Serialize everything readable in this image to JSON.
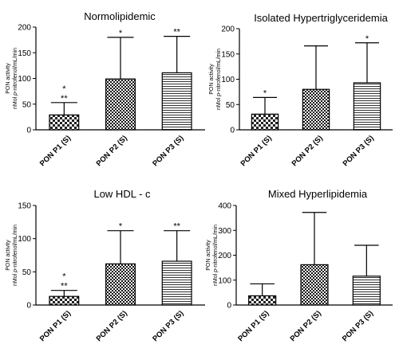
{
  "chart_data": [
    {
      "type": "bar",
      "title": "Normolipidemic",
      "ylabel": "PON activity",
      "ylabel2_pre": "nMol ",
      "ylabel2_italic": "p",
      "ylabel2_post": "-nitrofenol/mL/min",
      "ylim": [
        0,
        200
      ],
      "yticks": [
        "0",
        "50",
        "100",
        "150",
        "200"
      ],
      "yticks_values": [
        0,
        50,
        100,
        150,
        200
      ],
      "categories": [
        "PON P1 (S)",
        "PON P2 (S)",
        "PON P3 (S)"
      ],
      "values": [
        29,
        99,
        111
      ],
      "error_upper": [
        53,
        180,
        182
      ],
      "annotations": [
        [
          "*",
          "**"
        ],
        [
          "*"
        ],
        [
          "**"
        ]
      ],
      "patterns": [
        "checker",
        "checker-fine",
        "hlines"
      ]
    },
    {
      "type": "bar",
      "title": "Isolated Hypertriglyceridemia",
      "ylabel": "PON activity",
      "ylabel2_pre": "nMol ",
      "ylabel2_italic": "p",
      "ylabel2_post": "-nitrofenol/mL/min",
      "ylim": [
        0,
        200
      ],
      "yticks": [
        "0",
        "50",
        "100",
        "150",
        "200"
      ],
      "yticks_values": [
        0,
        50,
        100,
        150,
        200
      ],
      "categories": [
        "PON P1 (S)",
        "PON P2 (S)",
        "PON P3 (S)"
      ],
      "values": [
        31,
        80,
        93
      ],
      "error_upper": [
        64,
        166,
        172
      ],
      "annotations": [
        [
          "*"
        ],
        [],
        [
          "*"
        ]
      ],
      "patterns": [
        "checker",
        "checker-fine",
        "hlines"
      ]
    },
    {
      "type": "bar",
      "title": "Low HDL - c",
      "ylabel": "PON activity",
      "ylabel2_pre": "nMol ",
      "ylabel2_italic": "p",
      "ylabel2_post": "-nitrofenol/mL/min",
      "ylim": [
        0,
        150
      ],
      "yticks": [
        "0",
        "50",
        "100",
        "150"
      ],
      "yticks_values": [
        0,
        50,
        100,
        150
      ],
      "categories": [
        "PON P1 (S)",
        "PON P2 (S)",
        "PON P3 (S)"
      ],
      "values": [
        13,
        62,
        66
      ],
      "error_upper": [
        22,
        112,
        112
      ],
      "annotations": [
        [
          "*",
          "**"
        ],
        [
          "*"
        ],
        [
          "**"
        ]
      ],
      "patterns": [
        "checker",
        "checker-fine",
        "hlines"
      ]
    },
    {
      "type": "bar",
      "title": "Mixed Hyperlipidemia",
      "ylabel": "PON activity",
      "ylabel2_pre": "nMol ",
      "ylabel2_italic": "p",
      "ylabel2_post": "-nitrofenol/mL/min",
      "ylim": [
        0,
        400
      ],
      "yticks": [
        "0",
        "100",
        "200",
        "300",
        "400"
      ],
      "yticks_values": [
        0,
        100,
        200,
        300,
        400
      ],
      "categories": [
        "PON P1 (S)",
        "PON P2 (S)",
        "PON P3 (S)"
      ],
      "values": [
        37,
        162,
        116
      ],
      "error_upper": [
        85,
        372,
        240
      ],
      "annotations": [
        [],
        [],
        []
      ],
      "patterns": [
        "checker",
        "checker-fine",
        "hlines"
      ]
    }
  ]
}
